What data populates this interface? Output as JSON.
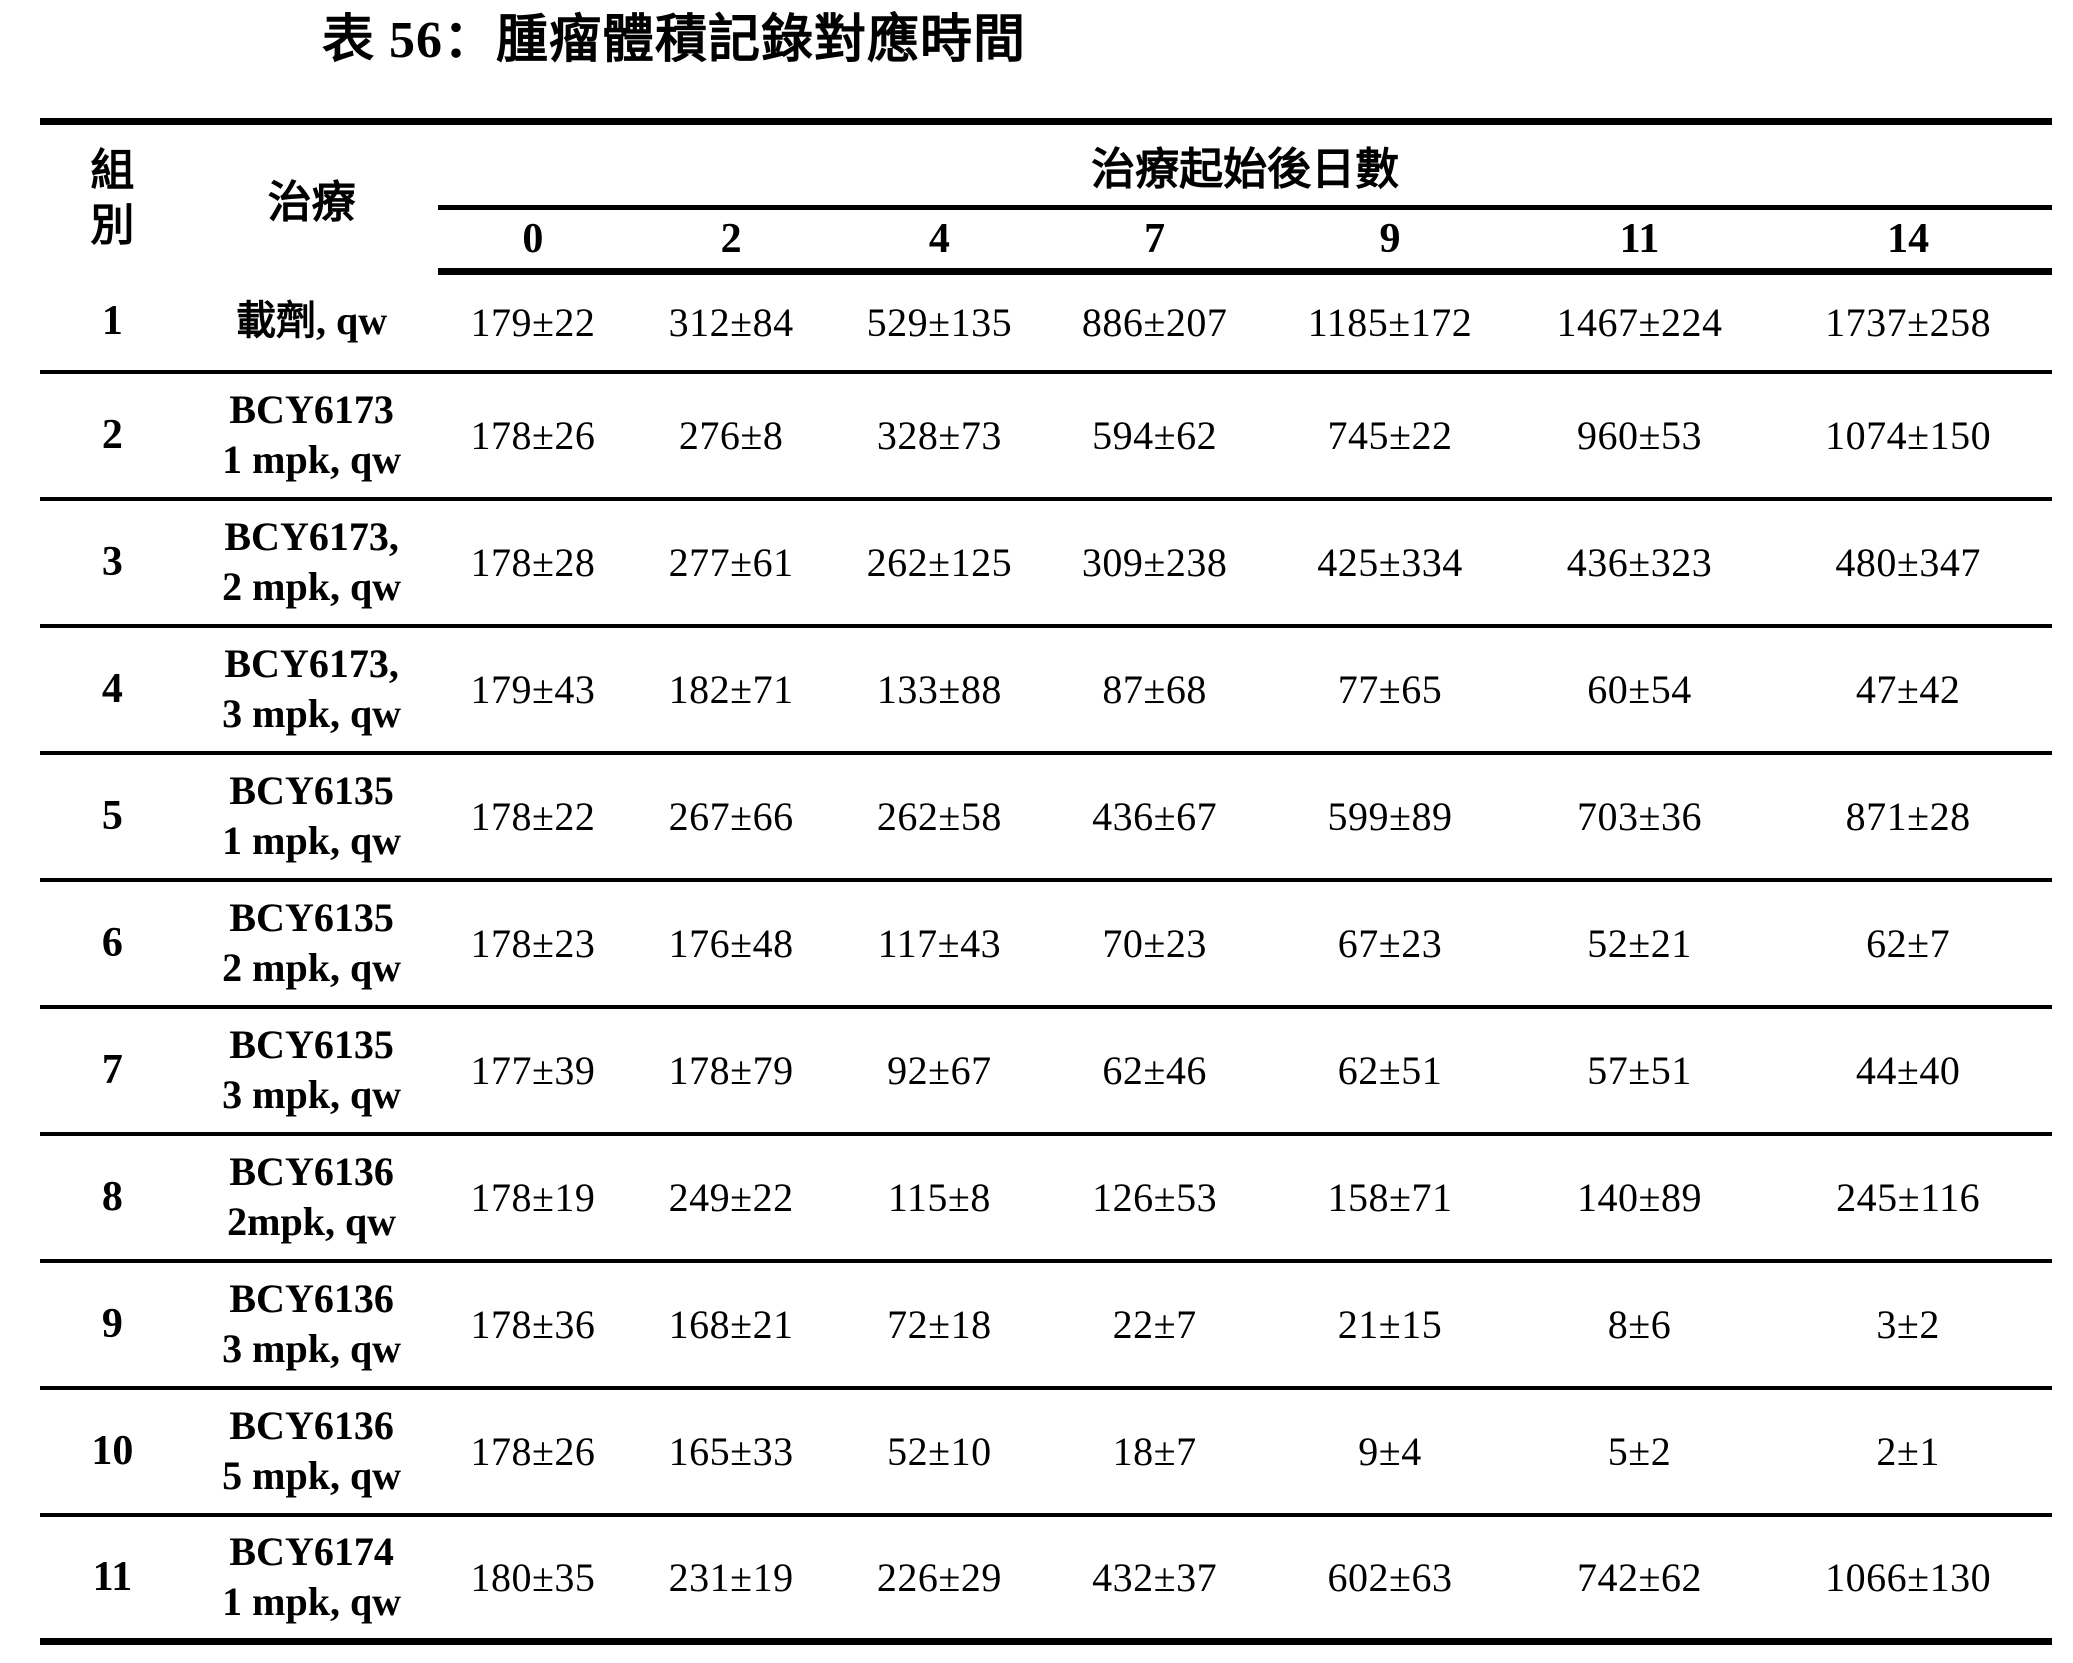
{
  "title": "表 56：腫瘤體積記錄對應時間",
  "table": {
    "group_header": "組\n別",
    "treatment_header": "治療",
    "days_header": "治療起始後日數",
    "day_labels": [
      "0",
      "2",
      "4",
      "7",
      "9",
      "11",
      "14"
    ],
    "rows": [
      {
        "group": "1",
        "treatment": "載劑, qw",
        "values": [
          "179±22",
          "312±84",
          "529±135",
          "886±207",
          "1185±172",
          "1467±224",
          "1737±258"
        ]
      },
      {
        "group": "2",
        "treatment": "BCY6173\n1 mpk, qw",
        "values": [
          "178±26",
          "276±8",
          "328±73",
          "594±62",
          "745±22",
          "960±53",
          "1074±150"
        ]
      },
      {
        "group": "3",
        "treatment": "BCY6173,\n2 mpk, qw",
        "values": [
          "178±28",
          "277±61",
          "262±125",
          "309±238",
          "425±334",
          "436±323",
          "480±347"
        ]
      },
      {
        "group": "4",
        "treatment": "BCY6173,\n3 mpk, qw",
        "values": [
          "179±43",
          "182±71",
          "133±88",
          "87±68",
          "77±65",
          "60±54",
          "47±42"
        ]
      },
      {
        "group": "5",
        "treatment": "BCY6135\n1 mpk, qw",
        "values": [
          "178±22",
          "267±66",
          "262±58",
          "436±67",
          "599±89",
          "703±36",
          "871±28"
        ]
      },
      {
        "group": "6",
        "treatment": "BCY6135\n2 mpk, qw",
        "values": [
          "178±23",
          "176±48",
          "117±43",
          "70±23",
          "67±23",
          "52±21",
          "62±7"
        ]
      },
      {
        "group": "7",
        "treatment": "BCY6135\n3 mpk, qw",
        "values": [
          "177±39",
          "178±79",
          "92±67",
          "62±46",
          "62±51",
          "57±51",
          "44±40"
        ]
      },
      {
        "group": "8",
        "treatment": "BCY6136\n2mpk, qw",
        "values": [
          "178±19",
          "249±22",
          "115±8",
          "126±53",
          "158±71",
          "140±89",
          "245±116"
        ]
      },
      {
        "group": "9",
        "treatment": "BCY6136\n3 mpk, qw",
        "values": [
          "178±36",
          "168±21",
          "72±18",
          "22±7",
          "21±15",
          "8±6",
          "3±2"
        ]
      },
      {
        "group": "10",
        "treatment": "BCY6136\n5 mpk, qw",
        "values": [
          "178±26",
          "165±33",
          "52±10",
          "18±7",
          "9±4",
          "5±2",
          "2±1"
        ]
      },
      {
        "group": "11",
        "treatment": "BCY6174\n1 mpk, qw",
        "values": [
          "180±35",
          "231±19",
          "226±29",
          "432±37",
          "602±63",
          "742±62",
          "1066±130"
        ]
      }
    ]
  }
}
